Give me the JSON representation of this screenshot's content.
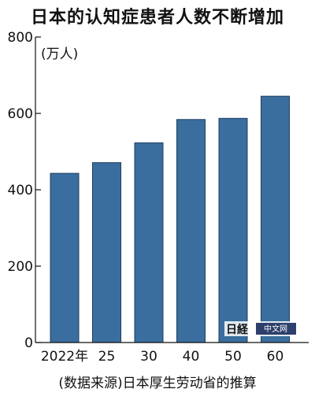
{
  "chart_data": {
    "type": "bar",
    "title": "日本的认知症患者人数不断增加",
    "unit_label": "(万人)",
    "categories": [
      "2022年",
      "25",
      "30",
      "40",
      "50",
      "60"
    ],
    "values": [
      443,
      471,
      523,
      584,
      587,
      645
    ],
    "ylim": [
      0,
      800
    ],
    "yticks": [
      "0",
      "200",
      "400",
      "600",
      "800"
    ],
    "grid": false,
    "bar_color": "#3a6e9e",
    "source": "(数据来源)日本厚生劳动省的推算"
  },
  "watermark": {
    "text": "日经中文网"
  }
}
